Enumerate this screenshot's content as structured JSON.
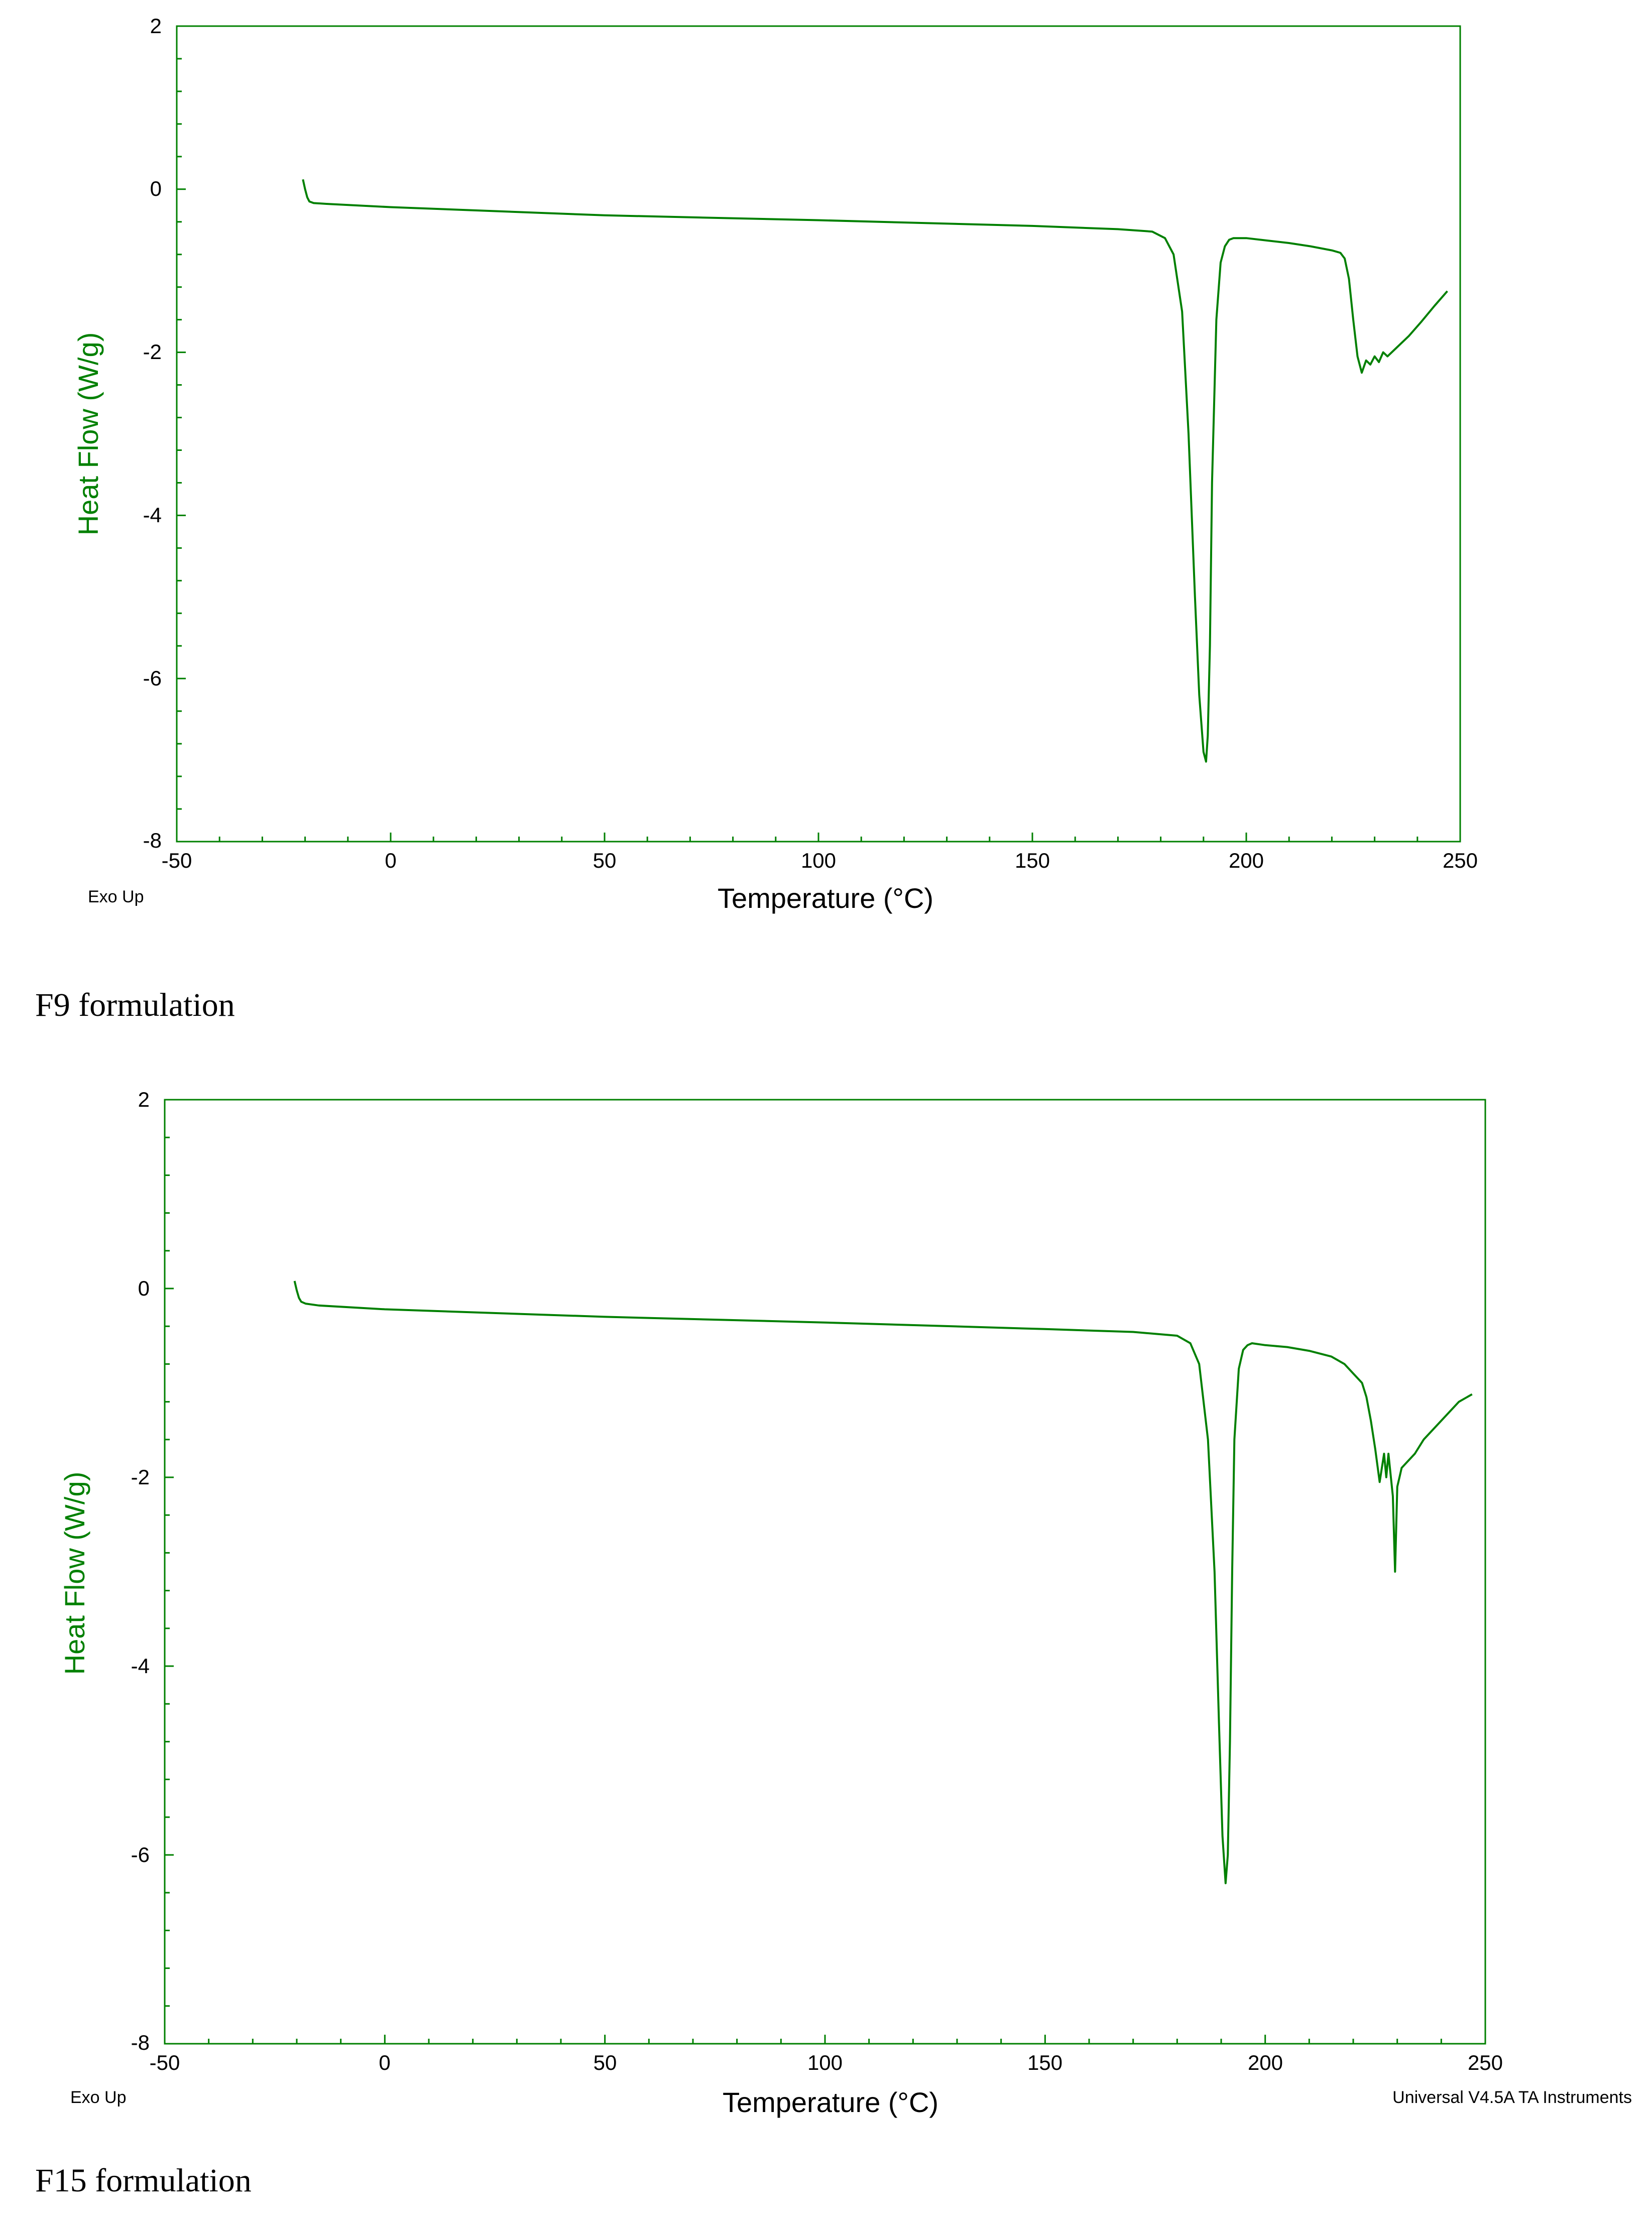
{
  "colors": {
    "curve": "#008000",
    "axis": "#008000",
    "ylabel": "#008000",
    "text": "#000000"
  },
  "chart_data": [
    {
      "type": "line",
      "caption": "F9 formulation",
      "xlabel": "Temperature (°C)",
      "ylabel": "Heat Flow (W/g)",
      "xlim": [
        -50,
        250
      ],
      "ylim": [
        -8,
        2
      ],
      "x_ticks": [
        "-50",
        "0",
        "50",
        "100",
        "150",
        "200",
        "250"
      ],
      "y_ticks": [
        "2",
        "0",
        "-2",
        "-4",
        "-6",
        "-8"
      ],
      "corner_note": "Exo Up",
      "footer_note": "",
      "series": [
        {
          "x": [
            -20.5,
            -20,
            -19.5,
            -19,
            -18,
            -15,
            0,
            50,
            100,
            150,
            170,
            178,
            181,
            183,
            185,
            186.5,
            188,
            189,
            190,
            190.6,
            191,
            191.5,
            192,
            193,
            194,
            195,
            196,
            197,
            200,
            205,
            210,
            215,
            218,
            220,
            222,
            223,
            224,
            225,
            226,
            227,
            228,
            229,
            230,
            231,
            232,
            233,
            235,
            238,
            241,
            244,
            247
          ],
          "y": [
            0.12,
            0.0,
            -0.1,
            -0.15,
            -0.17,
            -0.18,
            -0.22,
            -0.32,
            -0.38,
            -0.45,
            -0.49,
            -0.52,
            -0.6,
            -0.8,
            -1.5,
            -3.0,
            -5.0,
            -6.2,
            -6.9,
            -7.02,
            -6.7,
            -5.6,
            -3.6,
            -1.6,
            -0.9,
            -0.7,
            -0.62,
            -0.6,
            -0.6,
            -0.63,
            -0.66,
            -0.7,
            -0.73,
            -0.75,
            -0.78,
            -0.85,
            -1.1,
            -1.6,
            -2.05,
            -2.25,
            -2.1,
            -2.15,
            -2.05,
            -2.12,
            -2.0,
            -2.05,
            -1.95,
            -1.8,
            -1.62,
            -1.43,
            -1.25
          ]
        }
      ]
    },
    {
      "type": "line",
      "caption": "F15 formulation",
      "xlabel": "Temperature (°C)",
      "ylabel": "Heat Flow (W/g)",
      "xlim": [
        -50,
        250
      ],
      "ylim": [
        -8,
        2
      ],
      "x_ticks": [
        "-50",
        "0",
        "50",
        "100",
        "150",
        "200",
        "250"
      ],
      "y_ticks": [
        "2",
        "0",
        "-2",
        "-4",
        "-6",
        "-8"
      ],
      "corner_note": "Exo Up",
      "footer_note": "Universal V4.5A TA Instruments",
      "series": [
        {
          "x": [
            -20.5,
            -20,
            -19.5,
            -19,
            -18,
            -15,
            0,
            50,
            100,
            150,
            170,
            180,
            183,
            185,
            187,
            188.5,
            189.5,
            190.3,
            191,
            191.5,
            192,
            192.5,
            193,
            194,
            195,
            196,
            197,
            200,
            205,
            210,
            215,
            218,
            220,
            222,
            223,
            224,
            225,
            226,
            227,
            227.5,
            228,
            229,
            229.5,
            230,
            230.5,
            231,
            232,
            234,
            236,
            238,
            240,
            242,
            244,
            247
          ],
          "y": [
            0.08,
            -0.02,
            -0.1,
            -0.14,
            -0.16,
            -0.18,
            -0.22,
            -0.3,
            -0.36,
            -0.43,
            -0.46,
            -0.5,
            -0.58,
            -0.8,
            -1.6,
            -3.0,
            -4.6,
            -5.8,
            -6.3,
            -6.0,
            -4.8,
            -3.0,
            -1.6,
            -0.85,
            -0.65,
            -0.6,
            -0.58,
            -0.6,
            -0.62,
            -0.66,
            -0.72,
            -0.8,
            -0.9,
            -1.0,
            -1.15,
            -1.4,
            -1.7,
            -2.05,
            -1.75,
            -2.0,
            -1.75,
            -2.2,
            -3.0,
            -2.1,
            -2.0,
            -1.9,
            -1.85,
            -1.75,
            -1.6,
            -1.5,
            -1.4,
            -1.3,
            -1.2,
            -1.12
          ]
        }
      ]
    }
  ]
}
